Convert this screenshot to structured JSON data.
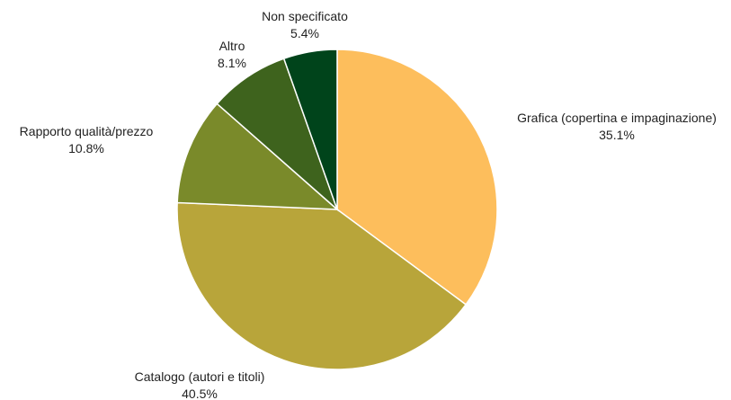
{
  "chart_data": {
    "type": "pie",
    "title": "",
    "categories": [
      "Grafica (copertina e impaginazione)",
      "Catalogo (autori e titoli)",
      "Rapporto qualità/prezzo",
      "Altro",
      "Non specificato"
    ],
    "values": [
      35.1,
      40.5,
      10.8,
      8.1,
      5.4
    ],
    "labels": [
      "35.1%",
      "40.5%",
      "10.8%",
      "8.1%",
      "5.4%"
    ],
    "colors": [
      "#FDBE5C",
      "#B8A53A",
      "#7A8A2A",
      "#3E631D",
      "#00441B"
    ],
    "start_angle": "12 o'clock",
    "direction": "clockwise",
    "legend": "none"
  }
}
